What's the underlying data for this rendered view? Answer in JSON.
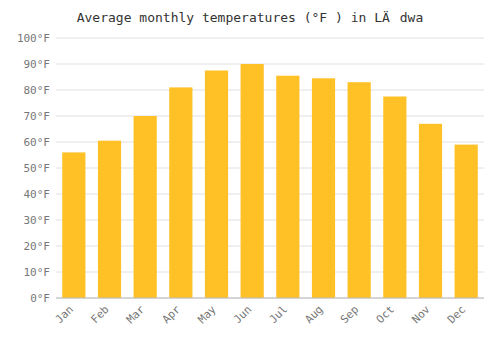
{
  "chart_data": {
    "type": "bar",
    "title": "Average monthly temperatures (°F ) in LÄdwa",
    "categories": [
      "Jan",
      "Feb",
      "Mar",
      "Apr",
      "May",
      "Jun",
      "Jul",
      "Aug",
      "Sep",
      "Oct",
      "Nov",
      "Dec"
    ],
    "values": [
      56,
      60.5,
      70,
      81,
      87.5,
      90,
      85.5,
      84.5,
      83,
      77.5,
      67,
      59
    ],
    "color": "#FFC125",
    "ylim": [
      0,
      100
    ],
    "yticks": [
      {
        "value": 0,
        "label": "0°F"
      },
      {
        "value": 10,
        "label": "10°F"
      },
      {
        "value": 20,
        "label": "20°F"
      },
      {
        "value": 30,
        "label": "30°F"
      },
      {
        "value": 40,
        "label": "40°F"
      },
      {
        "value": 50,
        "label": "50°F"
      },
      {
        "value": 60,
        "label": "60°F"
      },
      {
        "value": 70,
        "label": "70°F"
      },
      {
        "value": 80,
        "label": "80°F"
      },
      {
        "value": 90,
        "label": "90°F"
      },
      {
        "value": 100,
        "label": "100°F"
      }
    ],
    "grid": true
  }
}
